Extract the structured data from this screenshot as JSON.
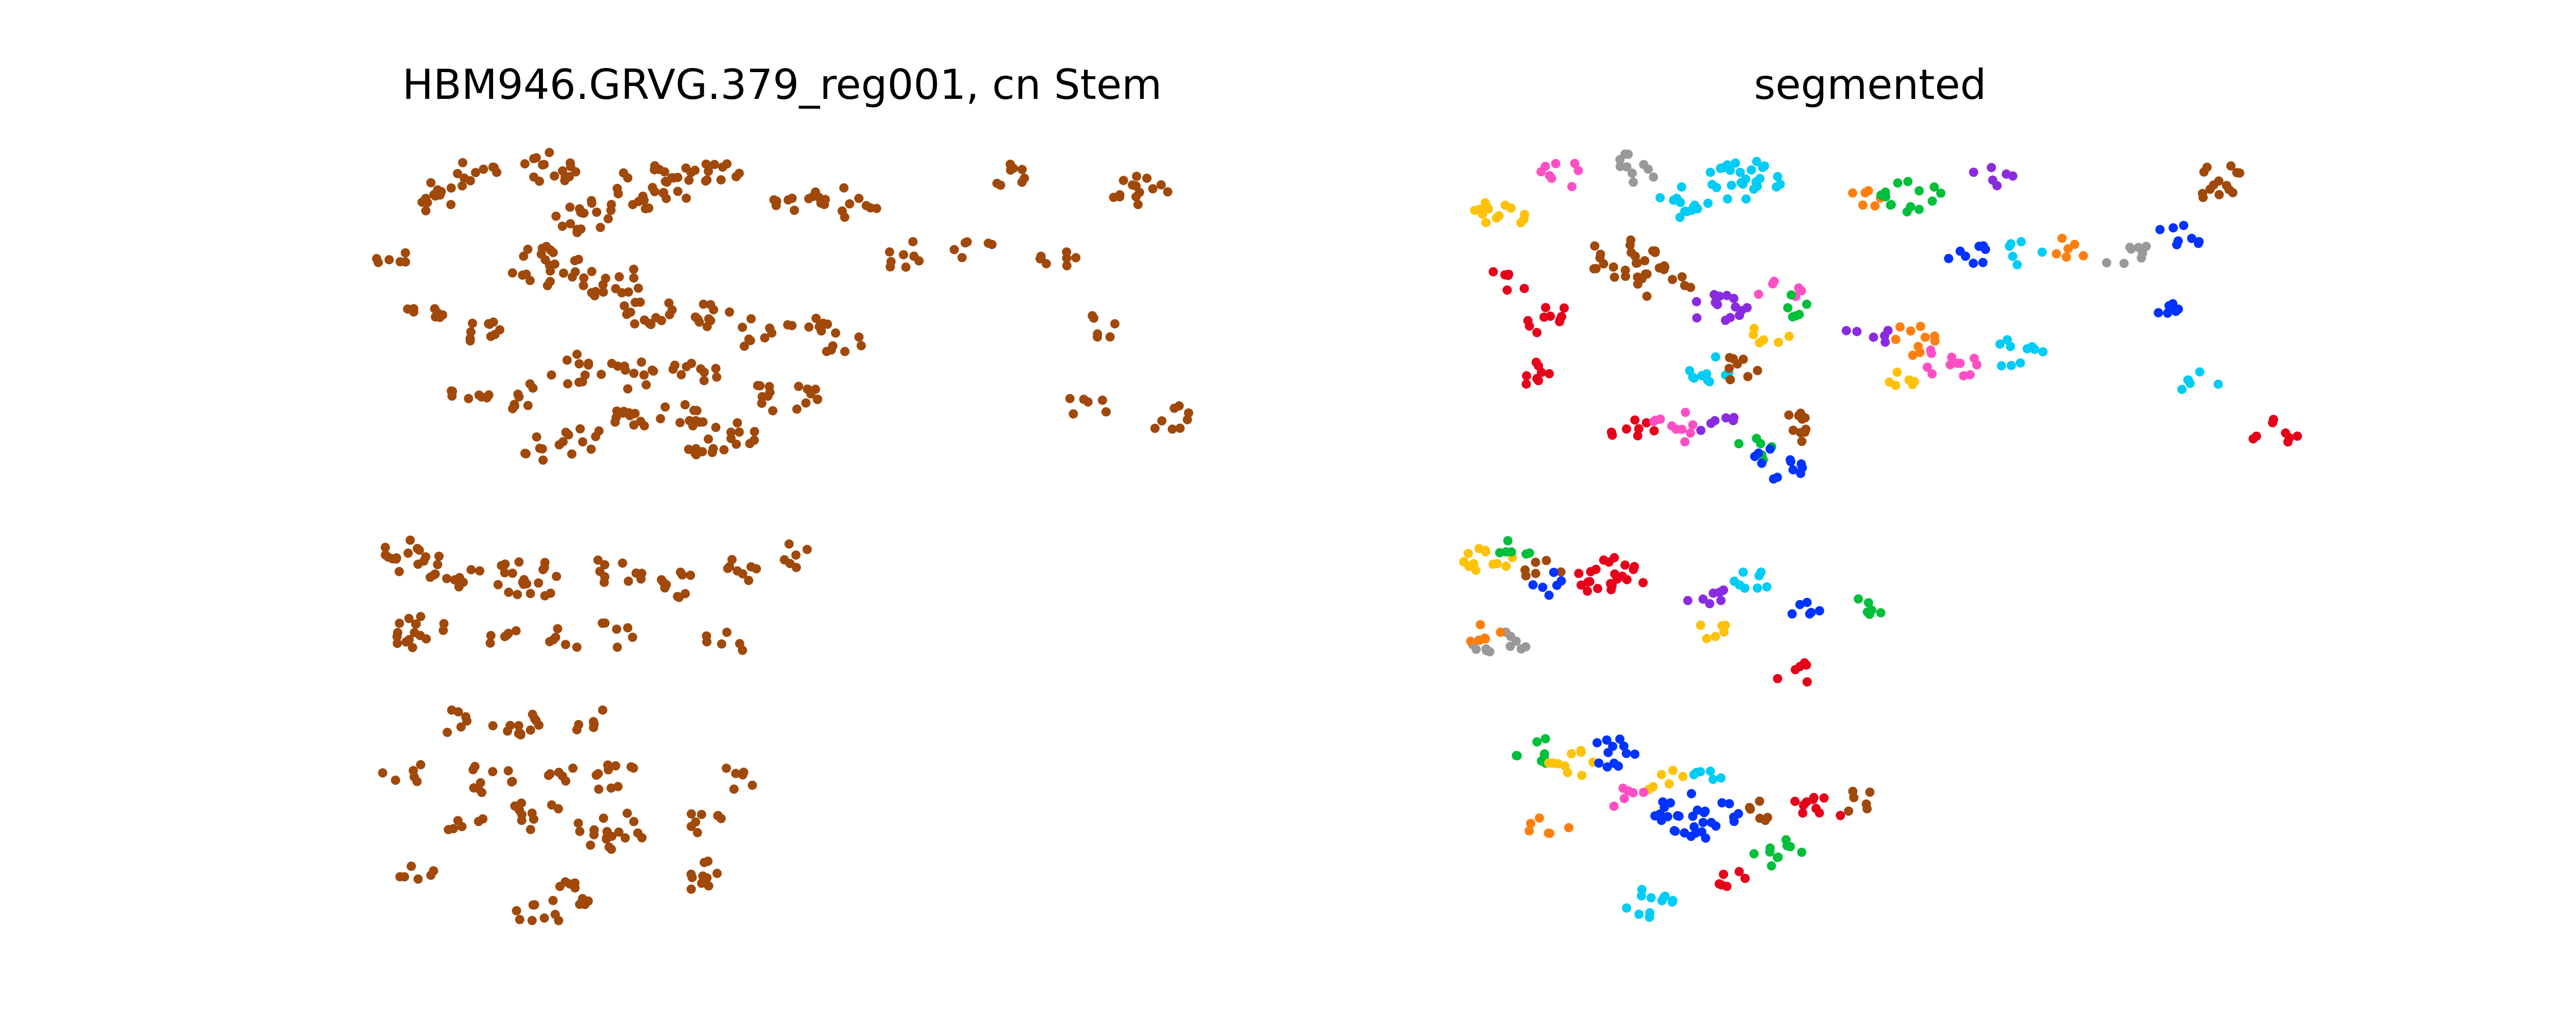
{
  "chart_data": [
    {
      "type": "scatter",
      "title": "HBM946.GRVG.379_reg001, cn Stem",
      "grid": false,
      "axes_visible": false,
      "color": "#A0490B",
      "clusters": [
        {
          "c": [
            0.07,
            0.05
          ],
          "n": 12
        },
        {
          "c": [
            0.12,
            0.02
          ],
          "n": 10
        },
        {
          "c": [
            0.22,
            0.01
          ],
          "n": 16
        },
        {
          "c": [
            0.26,
            0.08
          ],
          "n": 18
        },
        {
          "c": [
            0.34,
            0.04
          ],
          "n": 26
        },
        {
          "c": [
            0.41,
            0.02
          ],
          "n": 14
        },
        {
          "c": [
            0.52,
            0.06
          ],
          "n": 10
        },
        {
          "c": [
            0.58,
            0.06
          ],
          "n": 12
        },
        {
          "c": [
            0.78,
            0.02
          ],
          "n": 8
        },
        {
          "c": [
            0.93,
            0.04
          ],
          "n": 14
        },
        {
          "c": [
            0.03,
            0.14
          ],
          "n": 6
        },
        {
          "c": [
            0.21,
            0.15
          ],
          "n": 22
        },
        {
          "c": [
            0.29,
            0.17
          ],
          "n": 16
        },
        {
          "c": [
            0.33,
            0.21
          ],
          "n": 14
        },
        {
          "c": [
            0.41,
            0.21
          ],
          "n": 10
        },
        {
          "c": [
            0.06,
            0.22
          ],
          "n": 8
        },
        {
          "c": [
            0.13,
            0.24
          ],
          "n": 10
        },
        {
          "c": [
            0.53,
            0.22
          ],
          "n": 8
        },
        {
          "c": [
            0.64,
            0.13
          ],
          "n": 8
        },
        {
          "c": [
            0.73,
            0.12
          ],
          "n": 6
        },
        {
          "c": [
            0.83,
            0.13
          ],
          "n": 8
        },
        {
          "c": [
            0.89,
            0.23
          ],
          "n": 6
        },
        {
          "c": [
            0.46,
            0.24
          ],
          "n": 8
        },
        {
          "c": [
            0.24,
            0.29
          ],
          "n": 10
        },
        {
          "c": [
            0.39,
            0.3
          ],
          "n": 10
        },
        {
          "c": [
            0.31,
            0.3
          ],
          "n": 12
        },
        {
          "c": [
            0.57,
            0.25
          ],
          "n": 8
        },
        {
          "c": [
            0.12,
            0.33
          ],
          "n": 8
        },
        {
          "c": [
            0.19,
            0.33
          ],
          "n": 8
        },
        {
          "c": [
            0.32,
            0.35
          ],
          "n": 12
        },
        {
          "c": [
            0.38,
            0.35
          ],
          "n": 10
        },
        {
          "c": [
            0.48,
            0.33
          ],
          "n": 8
        },
        {
          "c": [
            0.53,
            0.33
          ],
          "n": 8
        },
        {
          "c": [
            0.87,
            0.34
          ],
          "n": 6
        },
        {
          "c": [
            0.97,
            0.36
          ],
          "n": 8
        },
        {
          "c": [
            0.21,
            0.4
          ],
          "n": 6
        },
        {
          "c": [
            0.26,
            0.39
          ],
          "n": 10
        },
        {
          "c": [
            0.41,
            0.39
          ],
          "n": 12
        },
        {
          "c": [
            0.46,
            0.38
          ],
          "n": 6
        },
        {
          "c": [
            0.04,
            0.55
          ],
          "n": 14
        },
        {
          "c": [
            0.1,
            0.57
          ],
          "n": 12
        },
        {
          "c": [
            0.19,
            0.58
          ],
          "n": 20
        },
        {
          "c": [
            0.3,
            0.57
          ],
          "n": 10
        },
        {
          "c": [
            0.37,
            0.59
          ],
          "n": 10
        },
        {
          "c": [
            0.45,
            0.57
          ],
          "n": 8
        },
        {
          "c": [
            0.51,
            0.55
          ],
          "n": 6
        },
        {
          "c": [
            0.06,
            0.66
          ],
          "n": 16
        },
        {
          "c": [
            0.15,
            0.66
          ],
          "n": 6
        },
        {
          "c": [
            0.24,
            0.66
          ],
          "n": 6
        },
        {
          "c": [
            0.29,
            0.66
          ],
          "n": 6
        },
        {
          "c": [
            0.43,
            0.67
          ],
          "n": 6
        },
        {
          "c": [
            0.09,
            0.78
          ],
          "n": 6
        },
        {
          "c": [
            0.18,
            0.79
          ],
          "n": 12
        },
        {
          "c": [
            0.27,
            0.78
          ],
          "n": 6
        },
        {
          "c": [
            0.04,
            0.85
          ],
          "n": 6
        },
        {
          "c": [
            0.14,
            0.86
          ],
          "n": 10
        },
        {
          "c": [
            0.24,
            0.86
          ],
          "n": 6
        },
        {
          "c": [
            0.3,
            0.86
          ],
          "n": 10
        },
        {
          "c": [
            0.44,
            0.86
          ],
          "n": 6
        },
        {
          "c": [
            0.11,
            0.92
          ],
          "n": 6
        },
        {
          "c": [
            0.2,
            0.91
          ],
          "n": 10
        },
        {
          "c": [
            0.29,
            0.93
          ],
          "n": 18
        },
        {
          "c": [
            0.4,
            0.92
          ],
          "n": 8
        },
        {
          "c": [
            0.06,
            0.99
          ],
          "n": 6
        },
        {
          "c": [
            0.24,
            1.02
          ],
          "n": 10
        },
        {
          "c": [
            0.39,
            0.99
          ],
          "n": 10
        },
        {
          "c": [
            0.2,
            1.05
          ],
          "n": 8
        }
      ]
    },
    {
      "type": "scatter",
      "title": "segmented",
      "grid": false,
      "axes_visible": false,
      "palette": [
        "#FFC20A",
        "#E6001A",
        "#FF4FC4",
        "#999999",
        "#00CCF5",
        "#A0490B",
        "#8A2BE2",
        "#00BF3A",
        "#FF7F0E",
        "#0033FF"
      ],
      "clusters": [
        {
          "c": [
            0.03,
            0.07
          ],
          "n": 14,
          "k": 0
        },
        {
          "c": [
            0.11,
            0.02
          ],
          "n": 8,
          "k": 2
        },
        {
          "c": [
            0.2,
            0.01
          ],
          "n": 10,
          "k": 3
        },
        {
          "c": [
            0.26,
            0.06
          ],
          "n": 14,
          "k": 4
        },
        {
          "c": [
            0.33,
            0.03
          ],
          "n": 26,
          "k": 4
        },
        {
          "c": [
            0.47,
            0.05
          ],
          "n": 6,
          "k": 8
        },
        {
          "c": [
            0.53,
            0.05
          ],
          "n": 14,
          "k": 7
        },
        {
          "c": [
            0.63,
            0.02
          ],
          "n": 6,
          "k": 6
        },
        {
          "c": [
            0.9,
            0.03
          ],
          "n": 14,
          "k": 5
        },
        {
          "c": [
            0.04,
            0.17
          ],
          "n": 6,
          "k": 1
        },
        {
          "c": [
            0.09,
            0.22
          ],
          "n": 10,
          "k": 1
        },
        {
          "c": [
            0.18,
            0.14
          ],
          "n": 22,
          "k": 5
        },
        {
          "c": [
            0.23,
            0.17
          ],
          "n": 12,
          "k": 5
        },
        {
          "c": [
            0.3,
            0.21
          ],
          "n": 14,
          "k": 6
        },
        {
          "c": [
            0.37,
            0.18
          ],
          "n": 6,
          "k": 2
        },
        {
          "c": [
            0.39,
            0.2
          ],
          "n": 6,
          "k": 7
        },
        {
          "c": [
            0.36,
            0.24
          ],
          "n": 6,
          "k": 0
        },
        {
          "c": [
            0.6,
            0.13
          ],
          "n": 8,
          "k": 9
        },
        {
          "c": [
            0.67,
            0.13
          ],
          "n": 6,
          "k": 4
        },
        {
          "c": [
            0.73,
            0.12
          ],
          "n": 6,
          "k": 8
        },
        {
          "c": [
            0.79,
            0.13
          ],
          "n": 8,
          "k": 3
        },
        {
          "c": [
            0.85,
            0.11
          ],
          "n": 8,
          "k": 9
        },
        {
          "c": [
            0.84,
            0.21
          ],
          "n": 6,
          "k": 9
        },
        {
          "c": [
            0.08,
            0.3
          ],
          "n": 8,
          "k": 1
        },
        {
          "c": [
            0.48,
            0.24
          ],
          "n": 6,
          "k": 6
        },
        {
          "c": [
            0.53,
            0.25
          ],
          "n": 10,
          "k": 8
        },
        {
          "c": [
            0.58,
            0.28
          ],
          "n": 12,
          "k": 2
        },
        {
          "c": [
            0.66,
            0.27
          ],
          "n": 10,
          "k": 4
        },
        {
          "c": [
            0.28,
            0.29
          ],
          "n": 10,
          "k": 4
        },
        {
          "c": [
            0.33,
            0.29
          ],
          "n": 8,
          "k": 5
        },
        {
          "c": [
            0.51,
            0.31
          ],
          "n": 6,
          "k": 0
        },
        {
          "c": [
            0.88,
            0.31
          ],
          "n": 6,
          "k": 4
        },
        {
          "c": [
            0.19,
            0.38
          ],
          "n": 8,
          "k": 1
        },
        {
          "c": [
            0.25,
            0.37
          ],
          "n": 10,
          "k": 2
        },
        {
          "c": [
            0.3,
            0.37
          ],
          "n": 6,
          "k": 6
        },
        {
          "c": [
            0.34,
            0.4
          ],
          "n": 6,
          "k": 7
        },
        {
          "c": [
            0.37,
            0.42
          ],
          "n": 12,
          "k": 9
        },
        {
          "c": [
            0.4,
            0.37
          ],
          "n": 10,
          "k": 5
        },
        {
          "c": [
            0.97,
            0.38
          ],
          "n": 8,
          "k": 1
        },
        {
          "c": [
            0.02,
            0.56
          ],
          "n": 12,
          "k": 0
        },
        {
          "c": [
            0.05,
            0.54
          ],
          "n": 6,
          "k": 7
        },
        {
          "c": [
            0.08,
            0.57
          ],
          "n": 6,
          "k": 5
        },
        {
          "c": [
            0.1,
            0.59
          ],
          "n": 6,
          "k": 9
        },
        {
          "c": [
            0.17,
            0.58
          ],
          "n": 22,
          "k": 1
        },
        {
          "c": [
            0.28,
            0.6
          ],
          "n": 8,
          "k": 6
        },
        {
          "c": [
            0.34,
            0.59
          ],
          "n": 8,
          "k": 4
        },
        {
          "c": [
            0.41,
            0.63
          ],
          "n": 6,
          "k": 9
        },
        {
          "c": [
            0.48,
            0.62
          ],
          "n": 6,
          "k": 7
        },
        {
          "c": [
            0.29,
            0.66
          ],
          "n": 6,
          "k": 0
        },
        {
          "c": [
            0.03,
            0.67
          ],
          "n": 12,
          "k": 3
        },
        {
          "c": [
            0.01,
            0.66
          ],
          "n": 6,
          "k": 8
        },
        {
          "c": [
            0.39,
            0.71
          ],
          "n": 6,
          "k": 1
        },
        {
          "c": [
            0.08,
            0.82
          ],
          "n": 8,
          "k": 7
        },
        {
          "c": [
            0.12,
            0.84
          ],
          "n": 10,
          "k": 0
        },
        {
          "c": [
            0.17,
            0.82
          ],
          "n": 12,
          "k": 9
        },
        {
          "c": [
            0.23,
            0.86
          ],
          "n": 6,
          "k": 0
        },
        {
          "c": [
            0.28,
            0.86
          ],
          "n": 6,
          "k": 4
        },
        {
          "c": [
            0.18,
            0.88
          ],
          "n": 6,
          "k": 2
        },
        {
          "c": [
            0.27,
            0.91
          ],
          "n": 30,
          "k": 9
        },
        {
          "c": [
            0.36,
            0.9
          ],
          "n": 6,
          "k": 5
        },
        {
          "c": [
            0.42,
            0.9
          ],
          "n": 10,
          "k": 1
        },
        {
          "c": [
            0.47,
            0.89
          ],
          "n": 6,
          "k": 5
        },
        {
          "c": [
            0.09,
            0.92
          ],
          "n": 6,
          "k": 8
        },
        {
          "c": [
            0.37,
            0.96
          ],
          "n": 10,
          "k": 7
        },
        {
          "c": [
            0.31,
            1.0
          ],
          "n": 6,
          "k": 1
        },
        {
          "c": [
            0.21,
            1.03
          ],
          "n": 12,
          "k": 4
        }
      ]
    }
  ]
}
